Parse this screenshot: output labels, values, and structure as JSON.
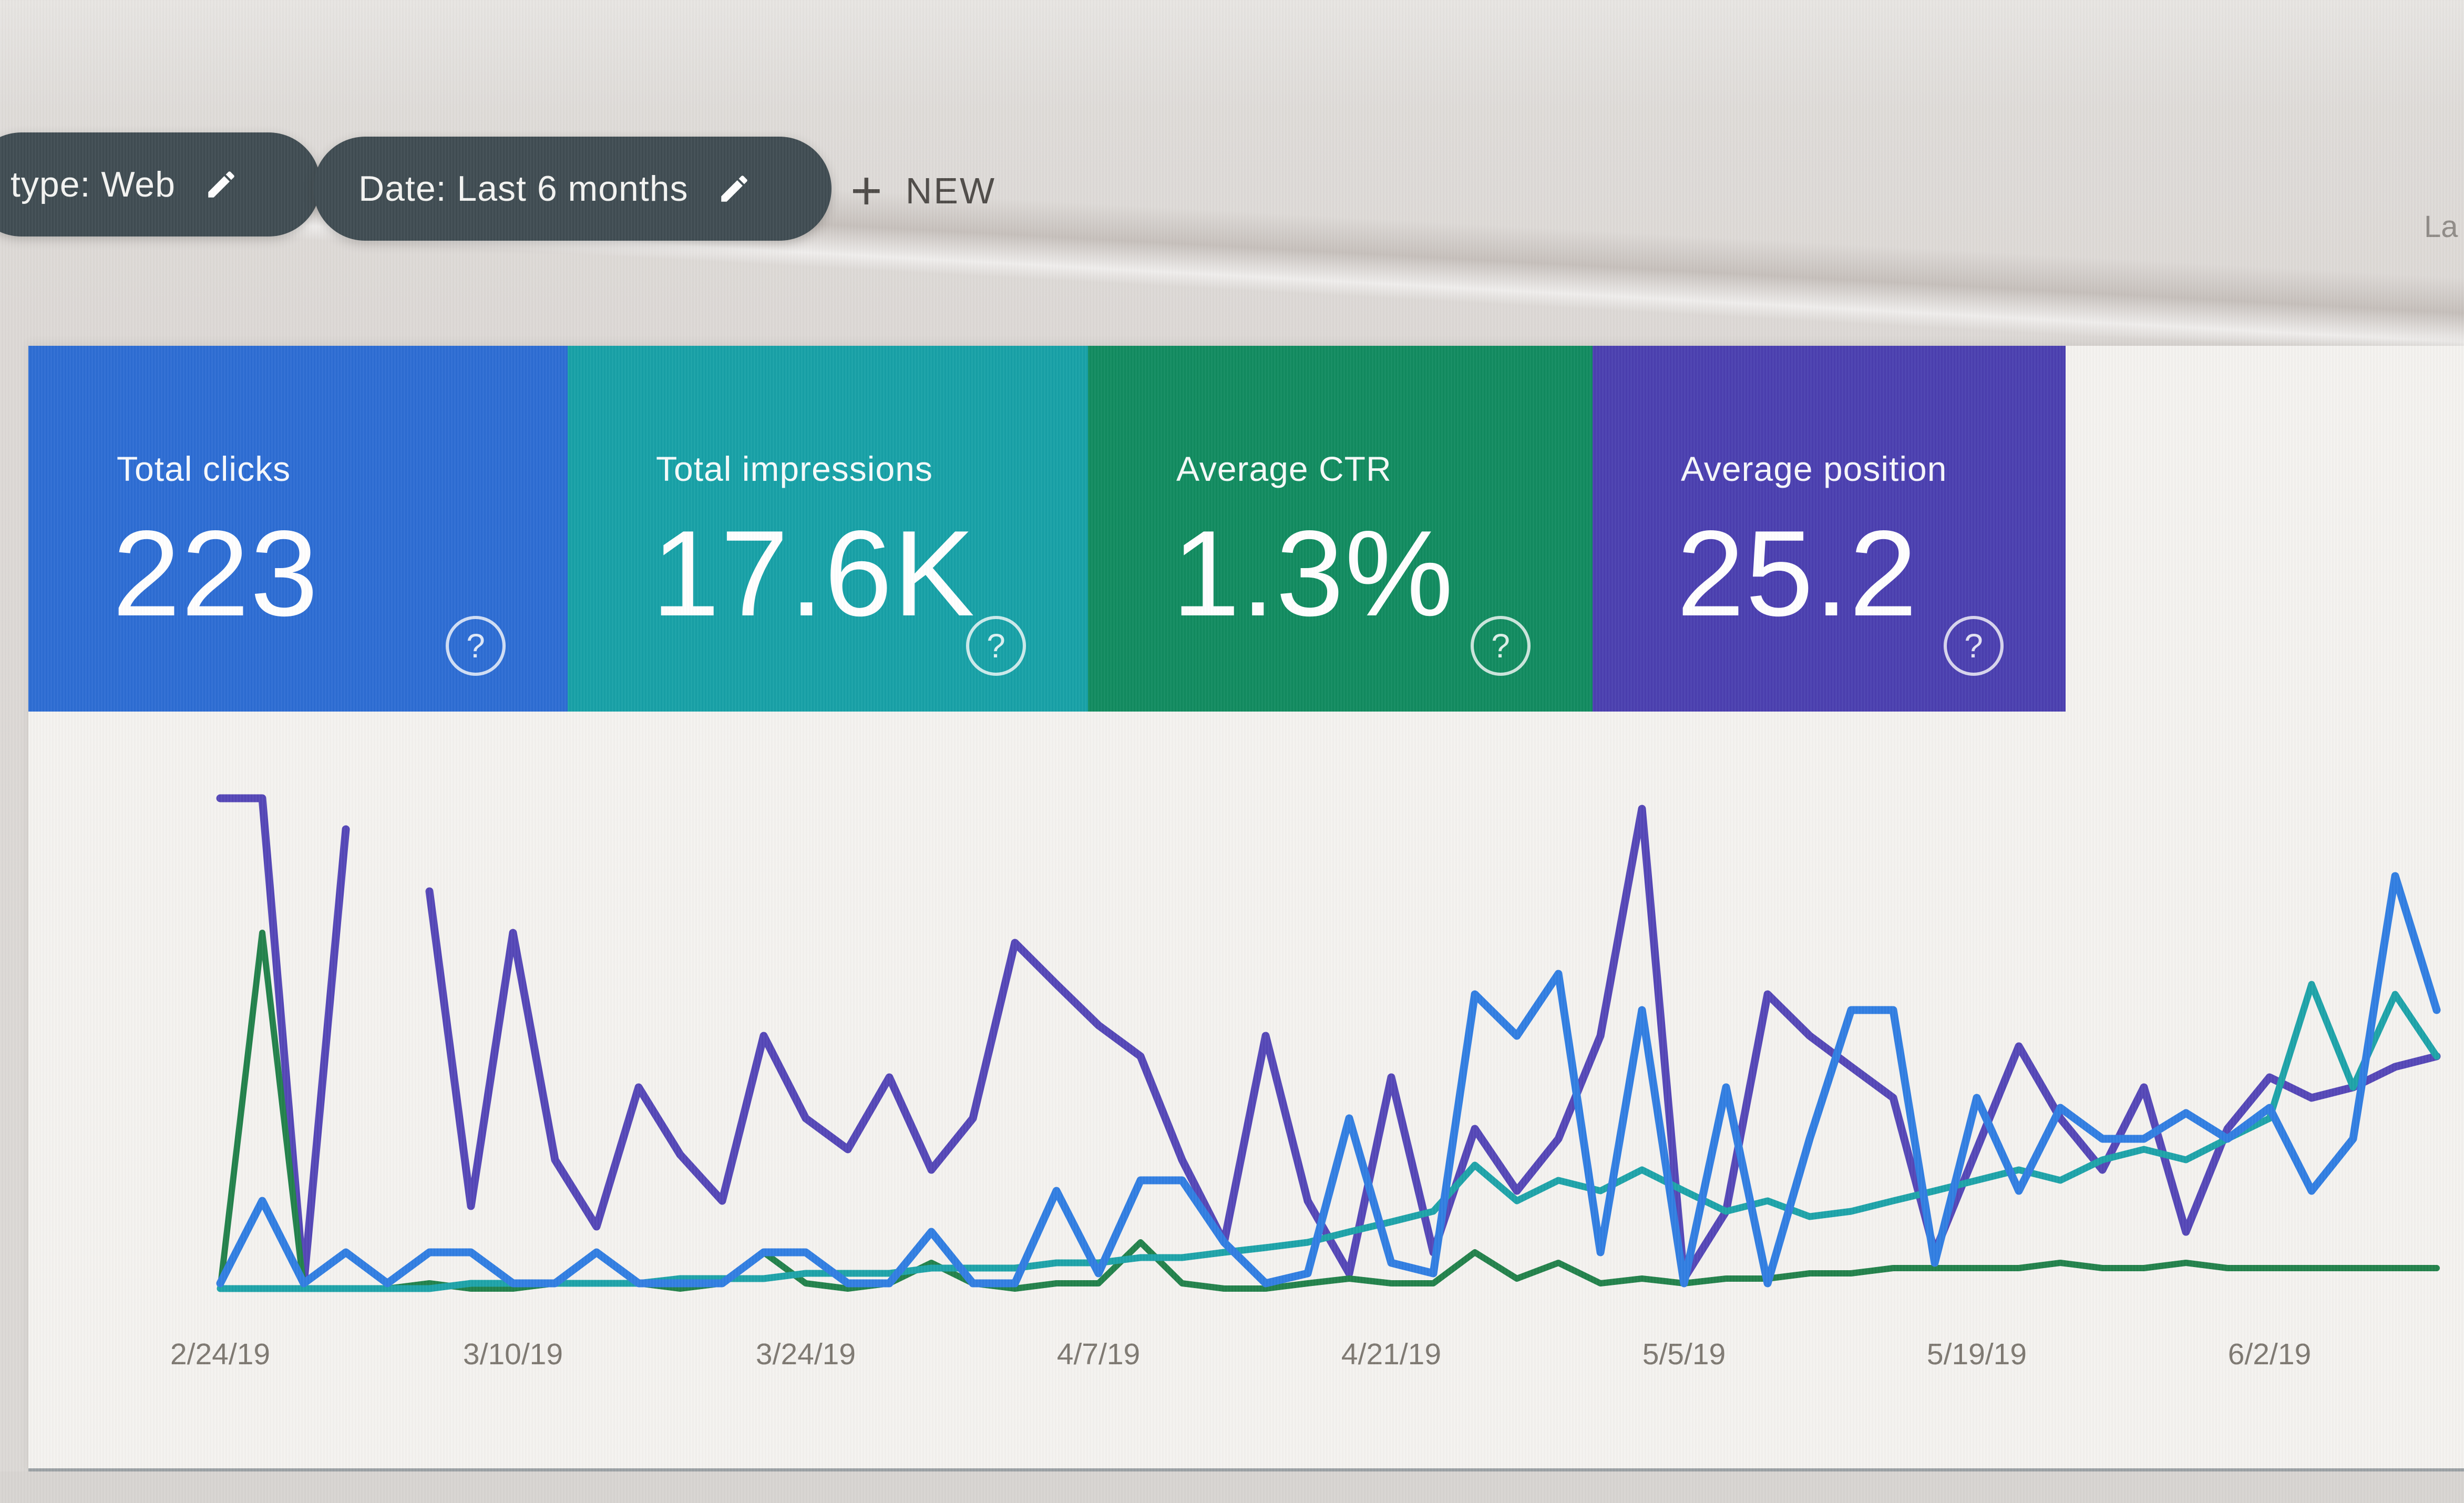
{
  "toolbar": {
    "chips": [
      {
        "label": "type: Web",
        "icon": "pencil"
      },
      {
        "label": "Date: Last 6 months",
        "icon": "pencil"
      }
    ],
    "new_button": {
      "plus": "+",
      "label": "NEW"
    },
    "top_right_partial_text": "La"
  },
  "summary_cards": [
    {
      "label": "Total clicks",
      "value": "223",
      "color": "#2a6bd3",
      "help_icon": "?"
    },
    {
      "label": "Total impressions",
      "value": "17.6K",
      "color": "#14a0a6",
      "help_icon": "?"
    },
    {
      "label": "Average CTR",
      "value": "1.3%",
      "color": "#0e8a5e",
      "help_icon": "?"
    },
    {
      "label": "Average position",
      "value": "25.2",
      "color": "#483daf",
      "help_icon": "?"
    }
  ],
  "chart_data": {
    "type": "line",
    "x_axis": "date, daily points from 2/24/19 to ~6/10/19 (sampled every 2 days)",
    "x_tick_labels": [
      "2/24/19",
      "3/10/19",
      "3/24/19",
      "4/7/19",
      "4/21/19",
      "5/5/19",
      "5/19/19",
      "6/2/19"
    ],
    "x_tick_indices": [
      0,
      7,
      14,
      21,
      28,
      35,
      42,
      49
    ],
    "y_axis": "no axis labels visible in screenshot; values estimated as percent of plot height (0 = baseline, 100 = top)",
    "grid": "off",
    "legend": "none (series colors match summary cards)",
    "series": [
      {
        "key": "position",
        "name": "Average position",
        "color": "#5244b6",
        "width": 15,
        "values": [
          96,
          96,
          2,
          90,
          null,
          78,
          17,
          70,
          26,
          13,
          40,
          27,
          18,
          50,
          34,
          28,
          42,
          24,
          34,
          68,
          60,
          52,
          46,
          26,
          10,
          50,
          18,
          4,
          42,
          8,
          32,
          20,
          30,
          50,
          94,
          3,
          16,
          58,
          50,
          44,
          38,
          8,
          28,
          48,
          34,
          24,
          40,
          12,
          32,
          42,
          38,
          40,
          44,
          46
        ],
        "note": "line gap after the initial plunge with one isolated point"
      },
      {
        "key": "ctr",
        "name": "Average CTR",
        "color": "#1f8049",
        "width": 12,
        "values": [
          1,
          70,
          1,
          1,
          1,
          2,
          1,
          1,
          2,
          8,
          2,
          1,
          2,
          8,
          2,
          1,
          2,
          6,
          2,
          1,
          2,
          2,
          10,
          2,
          1,
          1,
          2,
          3,
          2,
          2,
          8,
          3,
          6,
          2,
          3,
          2,
          3,
          3,
          4,
          4,
          5,
          5,
          5,
          5,
          6,
          5,
          5,
          6,
          5,
          5,
          5,
          5,
          5,
          5
        ]
      },
      {
        "key": "impressions",
        "name": "Total impressions",
        "color": "#1aa2a8",
        "width": 13,
        "values": [
          1,
          1,
          1,
          1,
          1,
          1,
          2,
          2,
          2,
          2,
          2,
          3,
          3,
          3,
          4,
          4,
          4,
          5,
          5,
          5,
          6,
          6,
          7,
          7,
          8,
          9,
          10,
          12,
          14,
          16,
          25,
          18,
          22,
          20,
          24,
          20,
          16,
          18,
          15,
          16,
          18,
          20,
          22,
          24,
          22,
          26,
          28,
          26,
          30,
          34,
          60,
          40,
          58,
          46
        ]
      },
      {
        "key": "clicks",
        "name": "Total clicks",
        "color": "#2e7ce2",
        "width": 15,
        "values": [
          2,
          18,
          2,
          8,
          2,
          8,
          8,
          2,
          2,
          8,
          2,
          2,
          2,
          8,
          8,
          2,
          2,
          12,
          2,
          2,
          20,
          4,
          22,
          22,
          10,
          2,
          4,
          34,
          6,
          4,
          58,
          50,
          62,
          8,
          55,
          2,
          40,
          2,
          30,
          55,
          55,
          6,
          38,
          20,
          36,
          30,
          30,
          35,
          30,
          36,
          20,
          30,
          81,
          55
        ]
      }
    ],
    "plot_geometry": {
      "x0": 419,
      "dx": 79.57,
      "baseline_y": 2462,
      "top_y": 1480,
      "tick_label_y": 2596
    }
  },
  "axis_style": {
    "tick_color": "#7c7770",
    "tick_font_size": 57
  }
}
